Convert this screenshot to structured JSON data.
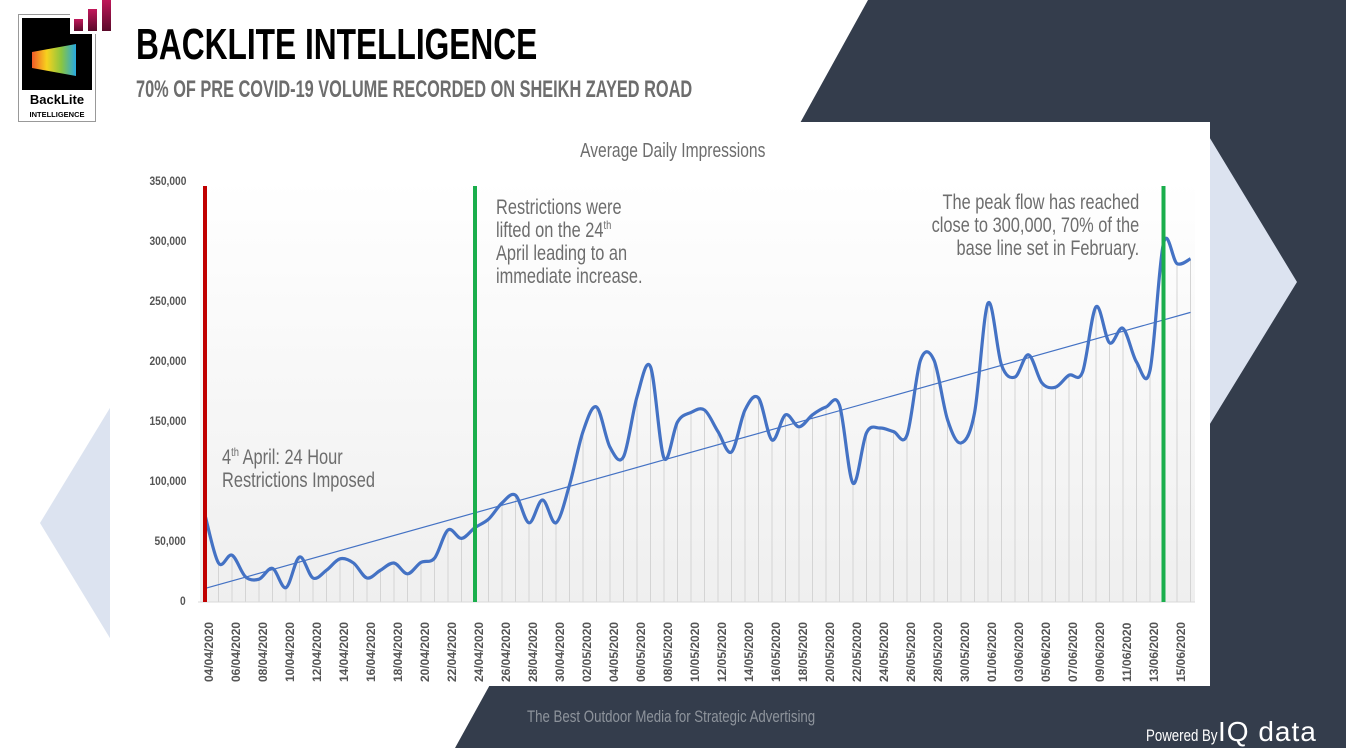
{
  "header": {
    "title": "BACKLITE INTELLIGENCE",
    "subtitle": "70% OF PRE COVID-19 VOLUME RECORDED ON SHEIKH ZAYED ROAD",
    "logo_name": "BackLite",
    "logo_sub": "INTELLIGENCE"
  },
  "colors": {
    "navy": "#343d4c",
    "arrow": "#dce3f0",
    "line": "#4472c4",
    "red": "#c00000",
    "green": "#1aae4c"
  },
  "annotations": {
    "a1": {
      "sup_num": "4",
      "sup": "th",
      "line1": " April: 24 Hour",
      "line2": "Restrictions Imposed",
      "date": "04/04/2020"
    },
    "a2": {
      "line1": "Restrictions were",
      "line2a": "lifted on the 24",
      "sup": "th",
      "line3": "April leading to an",
      "line4": "immediate increase.",
      "date": "24/04/2020"
    },
    "a3": {
      "line1": "The peak flow has reached",
      "line2": "close to 300,000, 70% of the",
      "line3": "base line set in February.",
      "date": "14/06/2020"
    }
  },
  "footer": {
    "tagline": "The Best Outdoor Media for Strategic Advertising",
    "powered": "Powered By",
    "brand": "IQ data"
  },
  "chart_data": {
    "type": "line",
    "title": "Average Daily Impressions",
    "xlabel": "",
    "ylabel": "",
    "ylim": [
      0,
      350000
    ],
    "yticks": [
      "0",
      "50,000",
      "100,000",
      "150,000",
      "200,000",
      "250,000",
      "300,000",
      "350,000"
    ],
    "start_date": "04/04/2020",
    "x_label_every": 2,
    "trendline": "linear",
    "values": [
      72500,
      32500,
      39000,
      21000,
      19000,
      28000,
      12000,
      37500,
      20000,
      26500,
      36000,
      32500,
      20000,
      26500,
      32500,
      23500,
      33000,
      36500,
      60000,
      53000,
      62000,
      69000,
      82500,
      89000,
      66000,
      85000,
      66000,
      97500,
      142000,
      162500,
      129000,
      121000,
      171000,
      196000,
      120000,
      150000,
      158000,
      160000,
      142000,
      125000,
      160000,
      170000,
      135000,
      156000,
      146000,
      156000,
      162500,
      164000,
      99000,
      141000,
      145000,
      142000,
      139000,
      201500,
      201500,
      152000,
      132500,
      157500,
      249000,
      197500,
      187500,
      206000,
      182500,
      179000,
      189000,
      191500,
      246000,
      216000,
      228000,
      200000,
      193000,
      299000,
      282000,
      286000
    ]
  }
}
